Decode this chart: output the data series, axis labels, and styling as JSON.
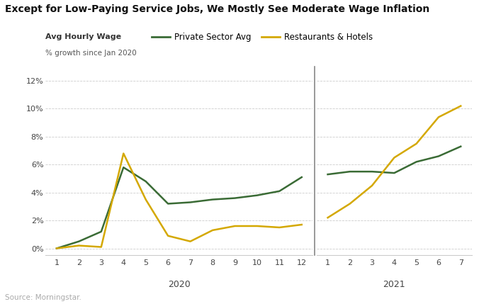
{
  "title": "Except for Low-Paying Service Jobs, We Mostly See Moderate Wage Inflation",
  "ylabel_main": "Avg Hourly Wage",
  "ylabel_sub": "% growth since Jan 2020",
  "source": "Source: Morningstar.",
  "legend": [
    "Private Sector Avg",
    "Restaurants & Hotels"
  ],
  "colors": {
    "private_sector": "#3a6b35",
    "restaurants": "#d4a800",
    "background": "#ffffff",
    "grid": "#aaaaaa",
    "divider": "#888888",
    "source_text": "#aaaaaa",
    "title_color": "#111111"
  },
  "private_sector_2020": [
    0.0,
    0.5,
    1.2,
    5.8,
    4.8,
    3.2,
    3.3,
    3.5,
    3.6,
    3.8,
    4.1,
    5.1
  ],
  "restaurants_2020": [
    0.0,
    0.2,
    0.1,
    6.8,
    3.5,
    0.9,
    0.5,
    1.3,
    1.6,
    1.6,
    1.5,
    1.7
  ],
  "private_sector_2021": [
    5.3,
    5.5,
    5.5,
    5.4,
    6.2,
    6.6,
    7.3
  ],
  "restaurants_2021": [
    2.2,
    3.2,
    4.5,
    6.5,
    7.5,
    9.4,
    10.2
  ],
  "yticks": [
    0,
    2,
    4,
    6,
    8,
    10,
    12
  ],
  "ylim": [
    -0.5,
    13.0
  ],
  "xticks_2020": [
    1,
    2,
    3,
    4,
    5,
    6,
    7,
    8,
    9,
    10,
    11,
    12
  ],
  "xticks_2021": [
    1,
    2,
    3,
    4,
    5,
    6,
    7
  ]
}
